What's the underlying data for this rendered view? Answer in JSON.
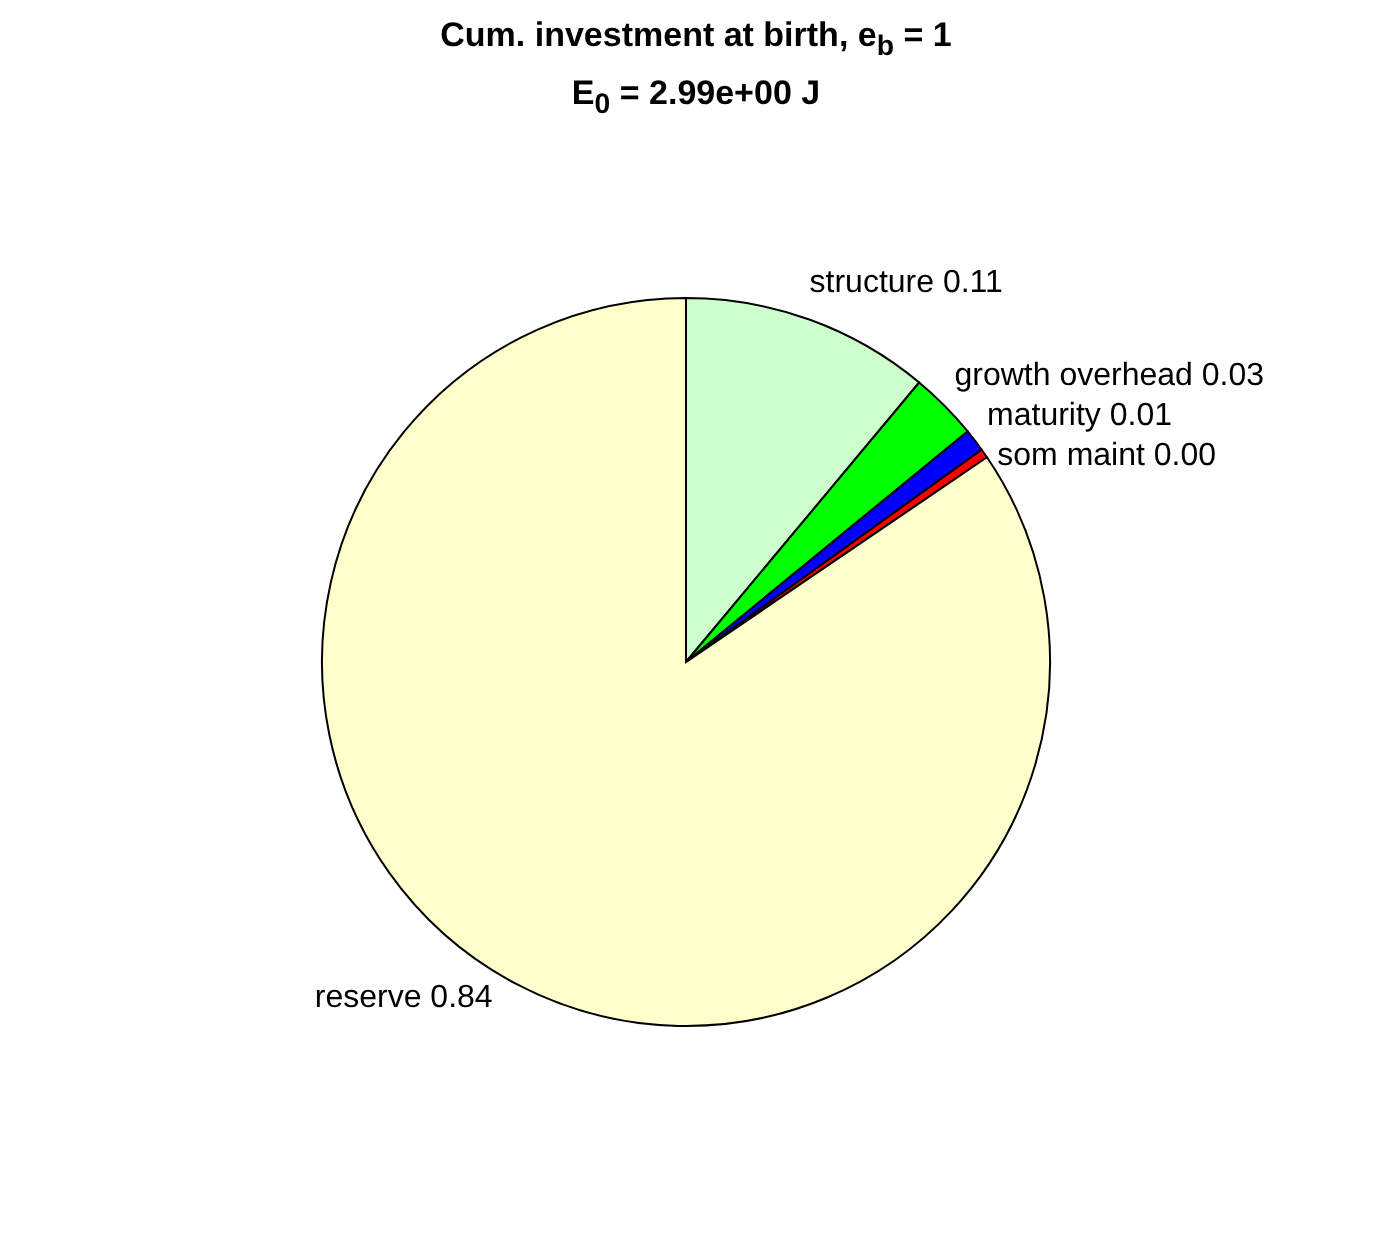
{
  "chart_data": {
    "type": "pie",
    "title": "Cum. investment at birth, e$_{b}$ = 1",
    "subtitle": "E$_{0}$ = 2.99e+00 J",
    "categories": [
      "structure",
      "growth overhead",
      "maturity",
      "som maint",
      "reserve"
    ],
    "values": [
      0.11,
      0.03,
      0.01,
      0.004,
      0.84
    ],
    "value_labels": [
      "0.11",
      "0.03",
      "0.01",
      "0.00",
      "0.84"
    ],
    "colors": [
      "#ccffcc",
      "#00ff00",
      "#0000ff",
      "#ff0000",
      "#ffffcc"
    ]
  }
}
